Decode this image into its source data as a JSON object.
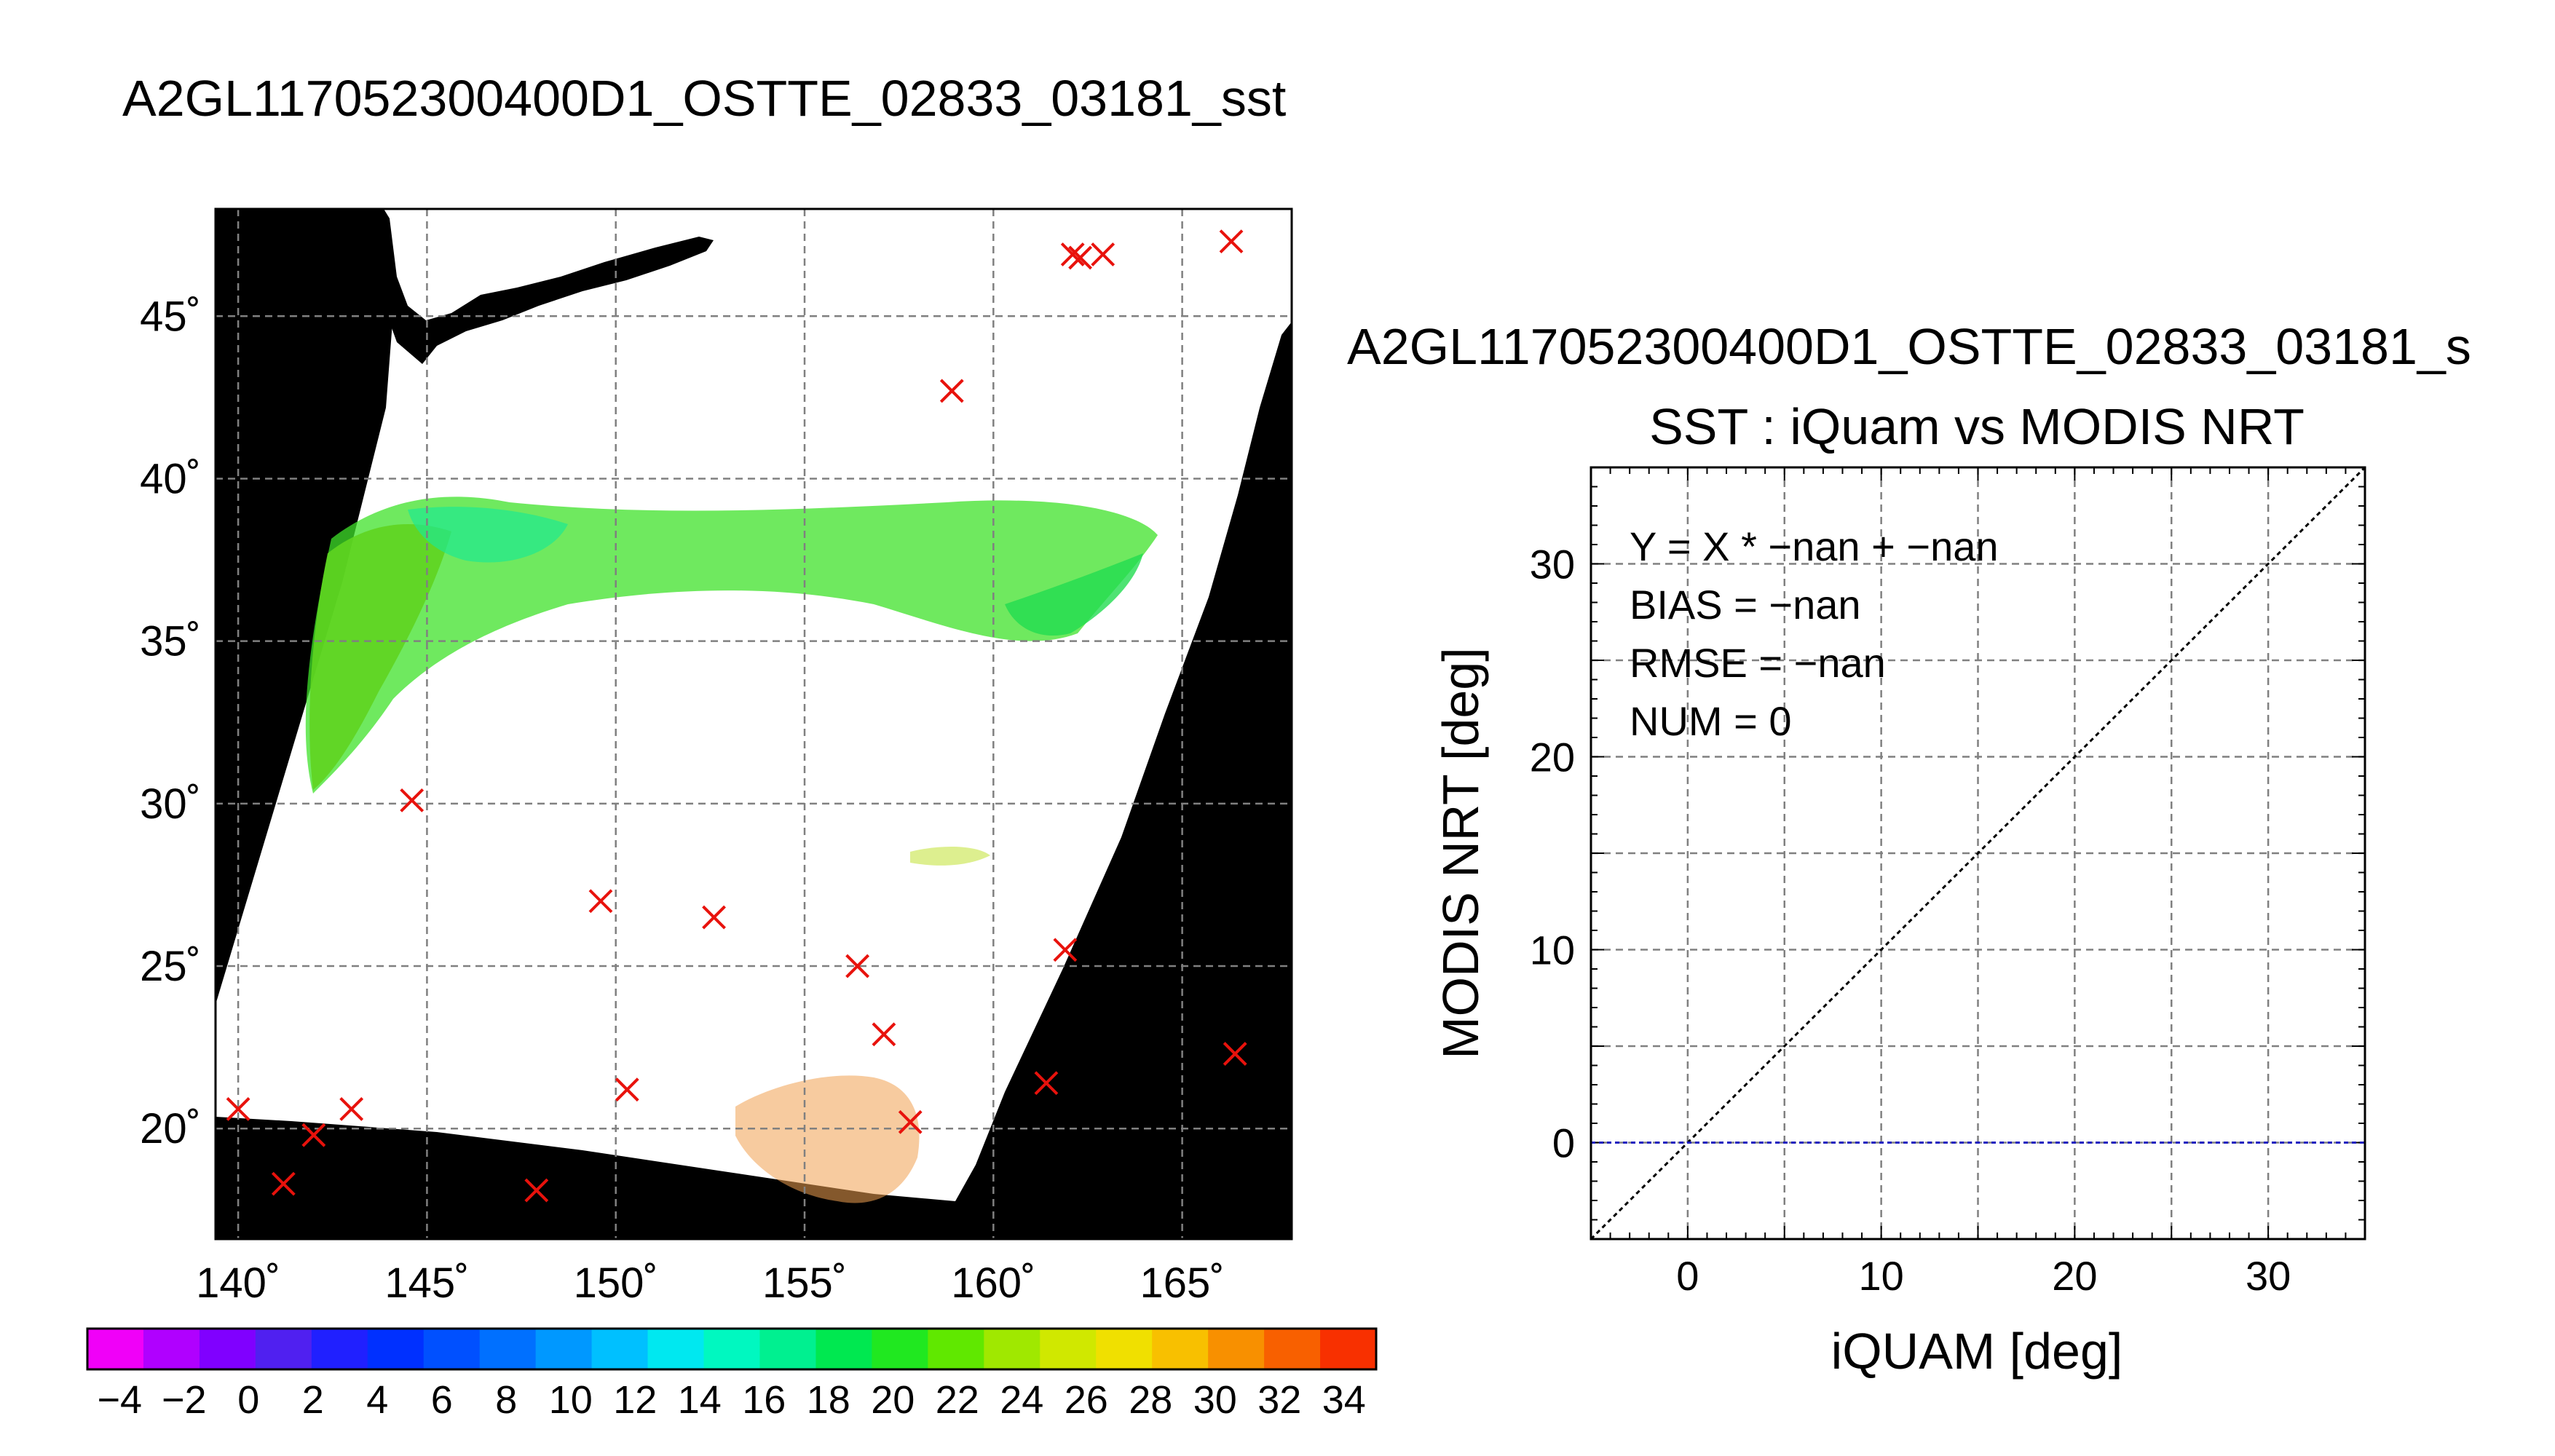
{
  "page": {
    "title": "A2GL117052300400D1_OSTTE_02833_03181_sst",
    "right_title": "A2GL117052300400D1_OSTTE_02833_03181_s"
  },
  "map": {
    "lon_ticks": [
      "140˚",
      "145˚",
      "150˚",
      "155˚",
      "160˚",
      "165˚"
    ],
    "lat_ticks": [
      "45˚",
      "40˚",
      "35˚",
      "30˚",
      "25˚",
      "20˚"
    ],
    "lon_range": [
      139.4,
      167.9
    ],
    "lat_range": [
      16.6,
      48.3
    ],
    "observation_marker": "×",
    "marker_color": "#e8120c"
  },
  "colorbar": {
    "tick_labels": [
      "−4",
      "−2",
      "0",
      "2",
      "4",
      "6",
      "8",
      "10",
      "12",
      "14",
      "16",
      "18",
      "20",
      "22",
      "24",
      "26",
      "28",
      "30",
      "32",
      "34"
    ],
    "range": [
      -5,
      35
    ],
    "colors": [
      "#f000f8",
      "#b000ff",
      "#8000ff",
      "#5020f0",
      "#2020ff",
      "#0030ff",
      "#0050ff",
      "#0070ff",
      "#0098ff",
      "#00c0ff",
      "#00e8f0",
      "#00f8c0",
      "#00f090",
      "#00e850",
      "#20e820",
      "#60e800",
      "#a0e800",
      "#d0e800",
      "#f0e000",
      "#f8c000",
      "#f89000",
      "#f86000",
      "#f83000"
    ]
  },
  "chart_data": [
    {
      "type": "scatter",
      "title": "SST : iQuam vs MODIS NRT",
      "xlabel": "iQUAM [deg]",
      "ylabel": "MODIS NRT [deg]",
      "xlim": [
        -5,
        35
      ],
      "ylim": [
        -5,
        35
      ],
      "x_ticks": [
        0,
        10,
        20,
        30
      ],
      "y_ticks": [
        0,
        10,
        20,
        30
      ],
      "grid": true,
      "series": [],
      "reference_lines": [
        {
          "kind": "identity",
          "from": [
            -5,
            -5
          ],
          "to": [
            35,
            35
          ],
          "color": "#000000"
        },
        {
          "kind": "fit",
          "from": [
            -5,
            0
          ],
          "to": [
            35,
            0
          ],
          "color": "#2020c0"
        }
      ],
      "stats": [
        "Y = X * −nan + −nan",
        "BIAS = −nan",
        "RMSE = −nan",
        "NUM = 0"
      ]
    },
    {
      "type": "scatter",
      "title": "",
      "xlabel": "",
      "ylabel": "",
      "xlim": [
        139.4,
        167.9
      ],
      "ylim": [
        16.6,
        48.3
      ],
      "series": [
        {
          "x": [
            140.0,
            141.2,
            142.0,
            143.0,
            144.6,
            147.9,
            149.6,
            150.3,
            152.6,
            156.4,
            157.1,
            157.8,
            158.9,
            161.4,
            161.9,
            162.1,
            162.3,
            162.9,
            166.3,
            166.4
          ],
          "y": [
            20.6,
            18.3,
            19.8,
            20.6,
            30.1,
            18.1,
            27.0,
            21.2,
            26.5,
            25.0,
            22.9,
            20.2,
            42.7,
            21.4,
            25.5,
            46.9,
            46.8,
            46.9,
            47.3,
            22.3
          ]
        }
      ]
    }
  ]
}
